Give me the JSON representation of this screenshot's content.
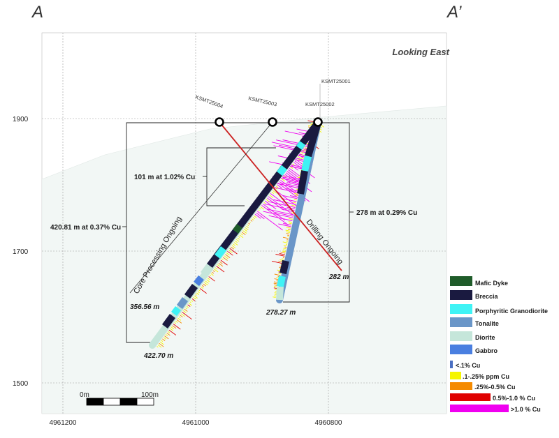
{
  "section": {
    "left_label": "A",
    "right_label": "A’",
    "view_label": "Looking East"
  },
  "axes": {
    "elevation_ticks": [
      "1900",
      "1700",
      "1500"
    ],
    "easting_ticks": [
      "4961200",
      "4961000",
      "4960800"
    ]
  },
  "holes": [
    {
      "id": "KSMT25004",
      "status": "Drilling Ongoing",
      "depth": "282 m"
    },
    {
      "id": "KSMT25003",
      "status": "Core Processing Ongoing",
      "depth": "356.56 m"
    },
    {
      "id": "KSMT25002",
      "depth": "422.70 m"
    },
    {
      "id": "KSMT25001",
      "depth": "278.27 m"
    }
  ],
  "intercepts": {
    "inner": "101 m at 1.02% Cu",
    "left": "420.81 m at 0.37% Cu",
    "right": "278 m at 0.29% Cu"
  },
  "scale_bar": {
    "start": "0m",
    "end": "100m"
  },
  "lithology_legend": [
    {
      "name": "Mafic Dyke",
      "color": "#1f5c2a"
    },
    {
      "name": "Breccia",
      "color": "#1a1a40"
    },
    {
      "name": "Porphyritic Granodiorite",
      "color": "#3ff3f5"
    },
    {
      "name": "Tonalite",
      "color": "#6a96c8"
    },
    {
      "name": "Diorite",
      "color": "#c5e6da"
    },
    {
      "name": "Gabbro",
      "color": "#4a7fe0"
    }
  ],
  "grade_legend": [
    {
      "name": "<.1% Cu",
      "color": "#4a6fc2"
    },
    {
      "name": ".1-.25% ppm Cu",
      "color": "#f5f500"
    },
    {
      "name": ".25%-0.5% Cu",
      "color": "#f58a00"
    },
    {
      "name": "0.5%-1.0 % Cu",
      "color": "#e00000"
    },
    {
      "name": ">1.0 % Cu",
      "color": "#f000f0"
    }
  ],
  "colors": {
    "background": "#f3f7f6",
    "hole_trace": "#cc2222",
    "frame": "#777777"
  }
}
